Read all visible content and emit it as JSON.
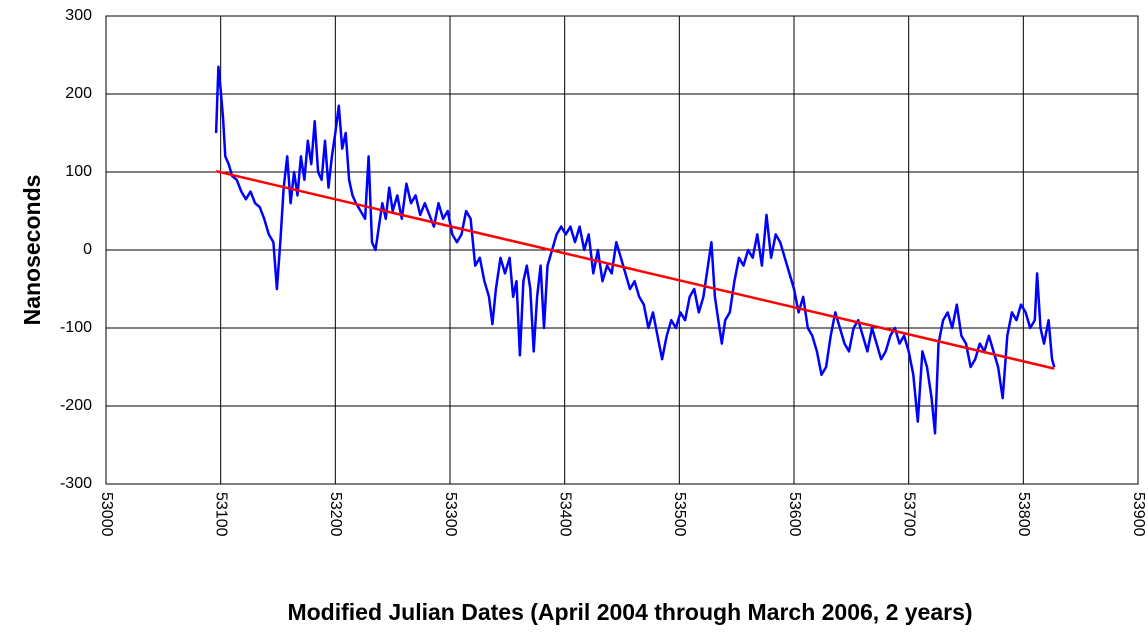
{
  "chart_data": {
    "type": "line",
    "x_label": "Modified Julian Dates (April 2004 through March 2006, 2 years)",
    "y_label": "Nanoseconds",
    "xlim": [
      53000,
      53900
    ],
    "xticks": [
      53000,
      53100,
      53200,
      53300,
      53400,
      53500,
      53600,
      53700,
      53800,
      53900
    ],
    "ylim": [
      -300,
      300
    ],
    "yticks": [
      -300,
      -200,
      -100,
      0,
      100,
      200,
      300
    ],
    "grid": true,
    "series": [
      {
        "color": "#0000ff",
        "x": [
          53096,
          53098,
          53100,
          53102,
          53104,
          53107,
          53110,
          53114,
          53118,
          53122,
          53126,
          53130,
          53134,
          53138,
          53142,
          53146,
          53149,
          53152,
          53155,
          53158,
          53161,
          53164,
          53167,
          53170,
          53173,
          53176,
          53179,
          53182,
          53185,
          53188,
          53191,
          53194,
          53197,
          53200,
          53203,
          53206,
          53209,
          53212,
          53215,
          53218,
          53222,
          53226,
          53229,
          53232,
          53235,
          53238,
          53241,
          53244,
          53247,
          53250,
          53254,
          53258,
          53262,
          53266,
          53270,
          53274,
          53278,
          53282,
          53286,
          53290,
          53294,
          53298,
          53302,
          53306,
          53310,
          53314,
          53318,
          53322,
          53326,
          53330,
          53334,
          53337,
          53340,
          53344,
          53348,
          53352,
          53355,
          53358,
          53361,
          53364,
          53367,
          53370,
          53373,
          53376,
          53379,
          53382,
          53385,
          53389,
          53393,
          53397,
          53401,
          53405,
          53409,
          53413,
          53417,
          53421,
          53425,
          53429,
          53433,
          53437,
          53441,
          53445,
          53449,
          53453,
          53457,
          53461,
          53465,
          53469,
          53473,
          53477,
          53481,
          53485,
          53489,
          53493,
          53497,
          53501,
          53505,
          53509,
          53513,
          53517,
          53521,
          53525,
          53528,
          53531,
          53534,
          53537,
          53540,
          53544,
          53548,
          53552,
          53556,
          53560,
          53564,
          53568,
          53572,
          53576,
          53580,
          53584,
          53588,
          53592,
          53596,
          53600,
          53604,
          53608,
          53612,
          53616,
          53620,
          53624,
          53628,
          53632,
          53636,
          53640,
          53644,
          53648,
          53652,
          53656,
          53660,
          53664,
          53668,
          53672,
          53676,
          53680,
          53684,
          53688,
          53692,
          53696,
          53700,
          53704,
          53708,
          53712,
          53716,
          53720,
          53723,
          53726,
          53730,
          53734,
          53738,
          53742,
          53746,
          53750,
          53754,
          53758,
          53762,
          53766,
          53770,
          53774,
          53778,
          53782,
          53786,
          53790,
          53794,
          53798,
          53802,
          53806,
          53810,
          53812,
          53815,
          53818,
          53822,
          53825,
          53827
        ],
        "values": [
          150,
          235,
          205,
          170,
          120,
          110,
          95,
          90,
          75,
          65,
          75,
          60,
          55,
          40,
          20,
          10,
          -50,
          10,
          80,
          120,
          60,
          100,
          70,
          120,
          90,
          140,
          110,
          165,
          100,
          90,
          140,
          80,
          120,
          150,
          185,
          130,
          150,
          90,
          70,
          60,
          50,
          40,
          120,
          10,
          0,
          30,
          60,
          40,
          80,
          50,
          70,
          40,
          85,
          60,
          70,
          45,
          60,
          45,
          30,
          60,
          40,
          50,
          20,
          10,
          20,
          50,
          40,
          -20,
          -10,
          -40,
          -60,
          -95,
          -50,
          -10,
          -30,
          -10,
          -60,
          -40,
          -135,
          -40,
          -20,
          -50,
          -130,
          -60,
          -20,
          -100,
          -20,
          0,
          20,
          30,
          20,
          30,
          10,
          30,
          0,
          20,
          -30,
          0,
          -40,
          -20,
          -30,
          10,
          -10,
          -30,
          -50,
          -40,
          -60,
          -70,
          -100,
          -80,
          -110,
          -140,
          -110,
          -90,
          -100,
          -80,
          -90,
          -60,
          -50,
          -80,
          -60,
          -20,
          10,
          -60,
          -90,
          -120,
          -90,
          -80,
          -40,
          -10,
          -20,
          0,
          -10,
          20,
          -20,
          45,
          -10,
          20,
          10,
          -10,
          -30,
          -50,
          -80,
          -60,
          -100,
          -110,
          -130,
          -160,
          -150,
          -110,
          -80,
          -100,
          -120,
          -130,
          -100,
          -90,
          -110,
          -130,
          -100,
          -120,
          -140,
          -130,
          -110,
          -100,
          -120,
          -110,
          -130,
          -160,
          -220,
          -130,
          -150,
          -190,
          -235,
          -120,
          -90,
          -80,
          -100,
          -70,
          -110,
          -120,
          -150,
          -140,
          -120,
          -130,
          -110,
          -130,
          -150,
          -190,
          -110,
          -80,
          -90,
          -70,
          -80,
          -100,
          -90,
          -30,
          -100,
          -120,
          -90,
          -140,
          -150
        ]
      },
      {
        "color": "#ff0000",
        "x": [
          53096,
          53827
        ],
        "values": [
          101,
          -152
        ]
      }
    ]
  }
}
